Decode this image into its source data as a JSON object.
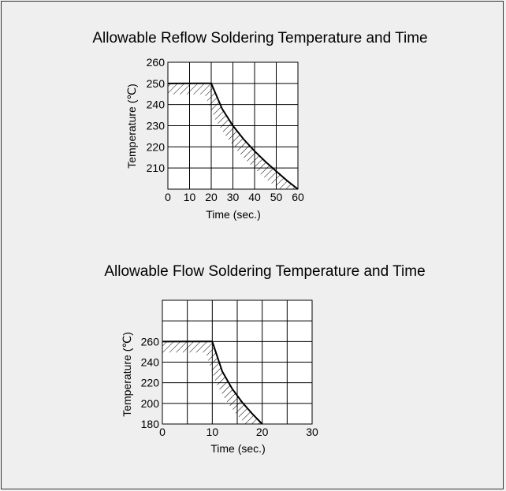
{
  "chart_data": [
    {
      "type": "line",
      "title": "Allowable Reflow Soldering Temperature and Time",
      "xlabel": "Time (sec.)",
      "ylabel": "Temperature (℃)",
      "xlim": [
        0,
        60
      ],
      "ylim": [
        200,
        260
      ],
      "xticks": [
        "0",
        "10",
        "20",
        "30",
        "40",
        "50",
        "60"
      ],
      "yticks": [
        "260",
        "250",
        "240",
        "230",
        "220",
        "210"
      ],
      "grid": true,
      "series": [
        {
          "x": [
            0,
            20,
            25,
            30,
            35,
            40,
            45,
            50,
            55,
            60
          ],
          "y": [
            250,
            250,
            238,
            230,
            223.5,
            218,
            213,
            208.5,
            204,
            200
          ]
        }
      ],
      "region": "below curve (allowable, hatched)"
    },
    {
      "type": "line",
      "title": "Allowable Flow Soldering Temperature and Time",
      "xlabel": "Time (sec.)",
      "ylabel": "Temperature (℃)",
      "xlim": [
        0,
        30
      ],
      "ylim": [
        180,
        300
      ],
      "xticks": [
        "0",
        "10",
        "20",
        "30"
      ],
      "yticks": [
        "260",
        "240",
        "220",
        "200",
        "180"
      ],
      "grid": true,
      "series": [
        {
          "x": [
            0,
            10,
            12,
            14,
            16,
            18,
            20
          ],
          "y": [
            260,
            260,
            231,
            214,
            201,
            190,
            180
          ]
        }
      ],
      "region": "below curve (allowable, hatched)"
    }
  ]
}
